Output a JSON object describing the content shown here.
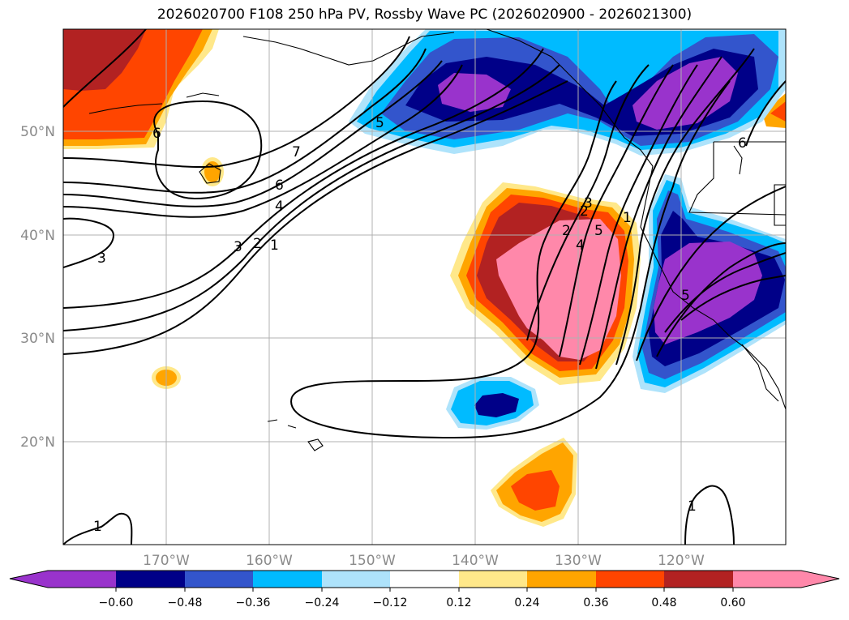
{
  "title": "2026020700 F108 250 hPa PV, Rossby Wave PC (2026020900 - 2026021300)",
  "lon_labels": [
    "170°W",
    "160°W",
    "150°W",
    "140°W",
    "130°W",
    "120°W"
  ],
  "lat_labels": [
    "50°N",
    "40°N",
    "30°N",
    "20°N"
  ],
  "colorbar": {
    "ticks": [
      "−0.60",
      "−0.48",
      "−0.36",
      "−0.24",
      "−0.12",
      "0.12",
      "0.24",
      "0.36",
      "0.48",
      "0.60"
    ],
    "colors": [
      "#9933cc",
      "#000088",
      "#3355cc",
      "#00bbff",
      "#aee3fb",
      "#ffffff",
      "#ffe88a",
      "#ffa500",
      "#ff4500",
      "#b22222",
      "#ff88aa"
    ]
  },
  "contour_labels": {
    "c1": "1",
    "c2": "2",
    "c3": "3",
    "c4": "4",
    "c5": "5",
    "c6": "6",
    "c7": "7",
    "c8": "3",
    "c9": "2",
    "c10": "1",
    "c11": "5",
    "c12": "4",
    "c13": "5",
    "c14": "2",
    "c15": "3",
    "c16": "6",
    "c17": "1",
    "c18": "1",
    "c19": "6"
  }
}
